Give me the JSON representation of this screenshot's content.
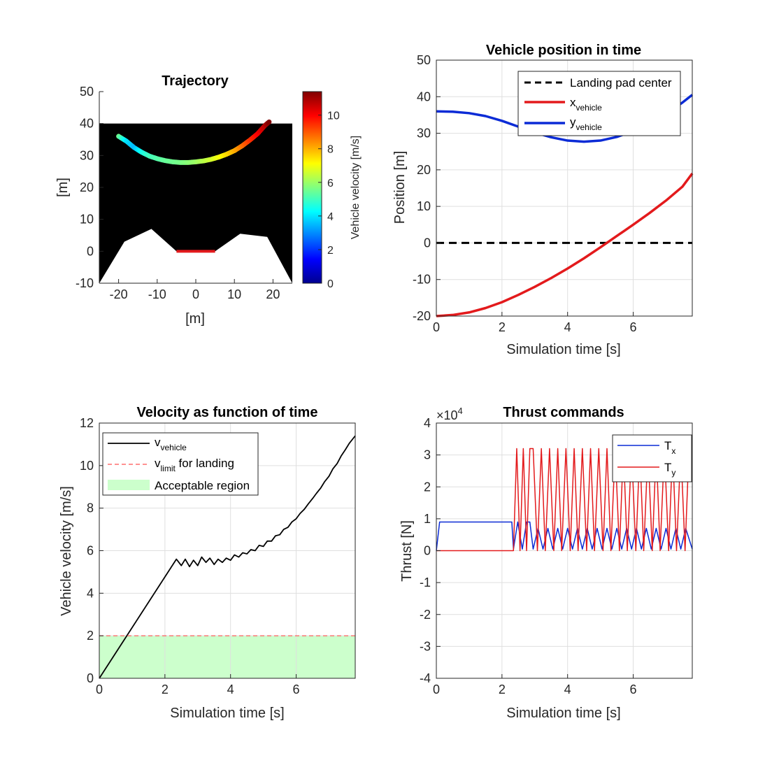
{
  "chart_data": [
    {
      "id": "trajectory",
      "type": "scatter",
      "title": "Trajectory",
      "xlabel": "[m]",
      "ylabel": "[m]",
      "xlim": [
        -25,
        25
      ],
      "ylim": [
        -10,
        50
      ],
      "xticks": [
        -20,
        -10,
        0,
        10,
        20
      ],
      "yticks": [
        -10,
        0,
        10,
        20,
        30,
        40,
        50
      ],
      "background": "#000000",
      "sky_top": 40,
      "terrain": {
        "color": "#ffffff",
        "points": [
          [
            -25,
            -10
          ],
          [
            -18.5,
            3
          ],
          [
            -11.5,
            7
          ],
          [
            -5,
            0
          ],
          [
            5,
            0
          ],
          [
            11.5,
            5.5
          ],
          [
            18.5,
            4.5
          ],
          [
            25,
            -10
          ]
        ]
      },
      "landing_pad": {
        "x": [
          -5,
          5
        ],
        "y": 0,
        "color": "#e31a1c"
      },
      "path": {
        "x": [
          -20,
          -18,
          -16,
          -14,
          -12,
          -10,
          -8,
          -6,
          -4,
          -2,
          0,
          2,
          4,
          6,
          8,
          10,
          12,
          14,
          16,
          18,
          19
        ],
        "y": [
          36,
          34.5,
          32.5,
          31,
          29.8,
          29,
          28.4,
          28,
          27.8,
          27.8,
          28,
          28.3,
          28.8,
          29.5,
          30.4,
          31.5,
          33,
          34.8,
          36.8,
          39.5,
          40.5
        ],
        "speed": [
          5.5,
          4,
          3.5,
          4.5,
          5,
          5.2,
          5.4,
          5.5,
          5.6,
          5.8,
          6,
          6.3,
          6.6,
          7,
          7.5,
          8,
          8.7,
          9.4,
          10,
          10.8,
          11.4
        ]
      },
      "colorbar": {
        "label": "Vehicle velocity [m/s]",
        "range": [
          0,
          11.4
        ],
        "ticks": [
          0,
          2,
          4,
          6,
          8,
          10
        ],
        "colormap": "jet"
      }
    },
    {
      "id": "position",
      "type": "line",
      "title": "Vehicle position in time",
      "xlabel": "Simulation time [s]",
      "ylabel": "Position [m]",
      "xlim": [
        0,
        7.8
      ],
      "ylim": [
        -20,
        50
      ],
      "xticks": [
        0,
        2,
        4,
        6
      ],
      "yticks": [
        -20,
        -10,
        0,
        10,
        20,
        30,
        40,
        50
      ],
      "grid": true,
      "legend_position": "top-right",
      "series": [
        {
          "name": "Landing pad center",
          "color": "#000000",
          "dashed": true,
          "width": 3,
          "x": [
            0,
            7.8
          ],
          "y": [
            0,
            0
          ]
        },
        {
          "name": "x",
          "sub": "vehicle",
          "color": "#e31a1c",
          "width": 3.5,
          "x": [
            0,
            0.5,
            1,
            1.5,
            2,
            2.5,
            3,
            3.5,
            4,
            4.5,
            5,
            5.5,
            6,
            6.5,
            7,
            7.5,
            7.8
          ],
          "y": [
            -20,
            -19.7,
            -19,
            -17.8,
            -16.2,
            -14.2,
            -12,
            -9.6,
            -7,
            -4.2,
            -1.2,
            1.9,
            5,
            8.2,
            11.6,
            15.4,
            19
          ]
        },
        {
          "name": "y",
          "sub": "vehicle",
          "color": "#0b2bd6",
          "width": 3.5,
          "x": [
            0,
            0.5,
            1,
            1.5,
            2,
            2.5,
            3,
            3.5,
            4,
            4.5,
            5,
            5.5,
            6,
            6.5,
            7,
            7.5,
            7.8
          ],
          "y": [
            36,
            35.9,
            35.5,
            34.7,
            33.4,
            31.8,
            30.2,
            28.9,
            28,
            27.7,
            28,
            29,
            30.6,
            32.7,
            35.3,
            38.4,
            40.5
          ]
        }
      ]
    },
    {
      "id": "velocity",
      "type": "line",
      "title": "Velocity as function of time",
      "xlabel": "Simulation time [s]",
      "ylabel": "Vehicle velocity [m/s]",
      "xlim": [
        0,
        7.8
      ],
      "ylim": [
        0,
        12
      ],
      "xticks": [
        0,
        2,
        4,
        6
      ],
      "yticks": [
        0,
        2,
        4,
        6,
        8,
        10,
        12
      ],
      "grid": true,
      "legend_position": "top-left",
      "region": {
        "name": "Acceptable region",
        "y": [
          0,
          2
        ],
        "color": "#ccffcc"
      },
      "series": [
        {
          "name": "v",
          "sub": "vehicle",
          "color": "#000000",
          "width": 1.8,
          "x": [
            0,
            2.35,
            2.5,
            2.62,
            2.75,
            2.87,
            3,
            3.12,
            3.25,
            3.37,
            3.5,
            3.62,
            3.75,
            3.87,
            4,
            4.12,
            4.25,
            4.37,
            4.5,
            4.62,
            4.75,
            4.87,
            5,
            5.12,
            5.25,
            5.37,
            5.5,
            5.62,
            5.75,
            5.87,
            6,
            6.12,
            6.25,
            6.37,
            6.5,
            6.62,
            6.75,
            6.87,
            7,
            7.12,
            7.25,
            7.37,
            7.5,
            7.62,
            7.8
          ],
          "y": [
            0,
            5.6,
            5.3,
            5.6,
            5.25,
            5.55,
            5.3,
            5.7,
            5.45,
            5.65,
            5.35,
            5.6,
            5.45,
            5.65,
            5.55,
            5.8,
            5.7,
            5.9,
            5.85,
            6.05,
            6.0,
            6.25,
            6.2,
            6.45,
            6.45,
            6.7,
            6.75,
            7.0,
            7.1,
            7.35,
            7.5,
            7.75,
            7.95,
            8.2,
            8.45,
            8.7,
            8.95,
            9.25,
            9.5,
            9.85,
            10.1,
            10.45,
            10.75,
            11.05,
            11.4
          ]
        },
        {
          "name": "v",
          "sub": "limit",
          "suffix": " for landing",
          "color": "#ff5050",
          "dashed": true,
          "width": 1.2,
          "x": [
            0,
            7.8
          ],
          "y": [
            2,
            2
          ]
        }
      ]
    },
    {
      "id": "thrust",
      "type": "line",
      "title": "Thrust commands",
      "xlabel": "Simulation time [s]",
      "ylabel": "Thrust [N]",
      "xlim": [
        0,
        7.8
      ],
      "ylim": [
        -4,
        4
      ],
      "xticks": [
        0,
        2,
        4,
        6
      ],
      "yticks": [
        -4,
        -3,
        -2,
        -1,
        0,
        1,
        2,
        3,
        4
      ],
      "exponent_label": "×10",
      "exponent": "4",
      "grid": true,
      "legend_position": "top-right",
      "series": [
        {
          "name": "T",
          "sub": "x",
          "color": "#0b2bd6",
          "width": 1.5,
          "x": [
            0,
            0.1,
            2.3,
            2.35,
            2.48,
            2.62,
            2.75,
            2.85,
            2.95,
            3.1,
            3.25,
            3.4,
            3.55,
            3.7,
            3.85,
            4.0,
            4.15,
            4.3,
            4.45,
            4.6,
            4.75,
            4.9,
            5.05,
            5.2,
            5.35,
            5.5,
            5.65,
            5.8,
            5.95,
            6.1,
            6.25,
            6.4,
            6.55,
            6.7,
            6.85,
            7.0,
            7.15,
            7.3,
            7.45,
            7.6,
            7.8
          ],
          "y": [
            0,
            0.9,
            0.9,
            0.05,
            0.9,
            0.05,
            0.9,
            0.9,
            0.05,
            0.7,
            0.05,
            0.7,
            0.05,
            0.7,
            0.05,
            0.7,
            0.05,
            0.7,
            0.05,
            0.7,
            0.05,
            0.7,
            0.05,
            0.7,
            0.05,
            0.7,
            0.05,
            0.7,
            0.05,
            0.7,
            0.05,
            0.7,
            0.05,
            0.7,
            0.05,
            0.7,
            0.05,
            0.7,
            0.05,
            0.7,
            0.05
          ]
        },
        {
          "name": "T",
          "sub": "y",
          "color": "#e31a1c",
          "width": 1.5,
          "x": [
            0,
            2.35,
            2.45,
            2.55,
            2.65,
            2.75,
            2.85,
            2.95,
            3.08,
            3.2,
            3.32,
            3.45,
            3.58,
            3.7,
            3.82,
            3.95,
            4.08,
            4.2,
            4.32,
            4.45,
            4.58,
            4.7,
            4.82,
            4.95,
            5.08,
            5.2,
            5.32,
            5.45,
            5.58,
            5.7,
            5.82,
            5.95,
            6.08,
            6.2,
            6.32,
            6.45,
            6.58,
            6.7,
            6.82,
            6.95,
            7.08,
            7.2,
            7.32,
            7.45,
            7.58,
            7.7,
            7.8
          ],
          "y": [
            0,
            0,
            3.2,
            0,
            3.2,
            0,
            3.2,
            3.2,
            0,
            3.2,
            0,
            3.2,
            0,
            3.2,
            0,
            3.2,
            0,
            3.2,
            0,
            3.2,
            0,
            3.2,
            0,
            3.2,
            0,
            3.2,
            0,
            3.2,
            0,
            3.2,
            0,
            3.2,
            0,
            3.2,
            0,
            3.2,
            0,
            3.2,
            0,
            3.2,
            0,
            3.2,
            0,
            3.2,
            0,
            3.2,
            3.2
          ]
        }
      ]
    }
  ]
}
